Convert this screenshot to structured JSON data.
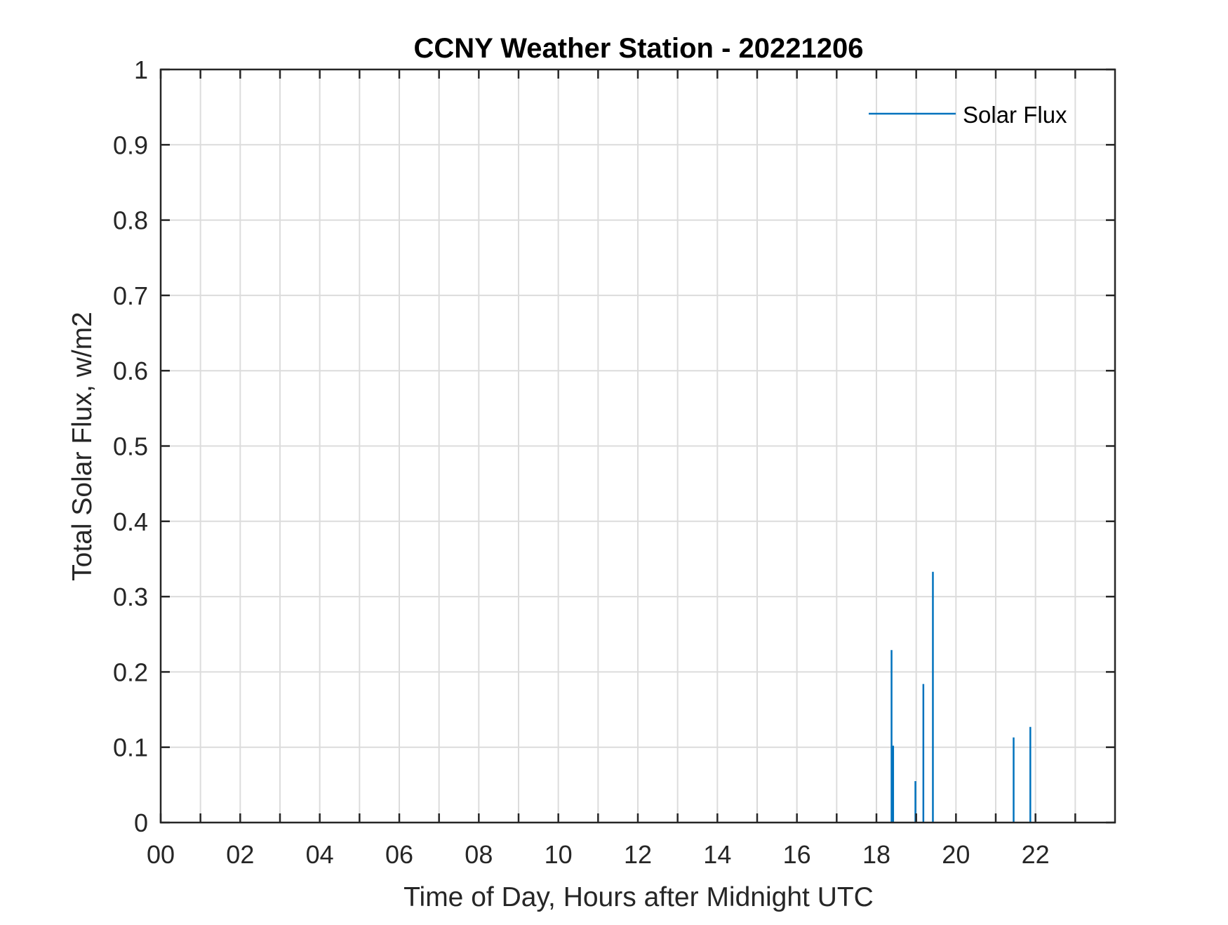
{
  "chart_data": {
    "type": "line",
    "title": "CCNY Weather Station - 20221206",
    "xlabel": "Time of Day, Hours after Midnight UTC",
    "ylabel": "Total Solar Flux, w/m2",
    "xlim": [
      0,
      24
    ],
    "ylim": [
      0,
      1
    ],
    "x_ticks": [
      0,
      2,
      4,
      6,
      8,
      10,
      12,
      14,
      16,
      18,
      20,
      22
    ],
    "x_tick_labels": [
      "00",
      "02",
      "04",
      "06",
      "08",
      "10",
      "12",
      "14",
      "16",
      "18",
      "20",
      "22"
    ],
    "x_minor_ticks": [
      1,
      3,
      5,
      7,
      9,
      11,
      13,
      15,
      17,
      19,
      21,
      23
    ],
    "y_ticks": [
      0,
      0.1,
      0.2,
      0.3,
      0.4,
      0.5,
      0.6,
      0.7,
      0.8,
      0.9,
      1
    ],
    "y_tick_labels": [
      "0",
      "0.1",
      "0.2",
      "0.3",
      "0.4",
      "0.5",
      "0.6",
      "0.7",
      "0.8",
      "0.9",
      "1"
    ],
    "grid": true,
    "legend": {
      "position": "top-right",
      "entries": [
        "Solar Flux"
      ]
    },
    "series": [
      {
        "name": "Solar Flux",
        "color": "#0072BD",
        "points": [
          {
            "x": 18.38,
            "y": 0.229
          },
          {
            "x": 18.42,
            "y": 0.102
          },
          {
            "x": 18.98,
            "y": 0.055
          },
          {
            "x": 19.18,
            "y": 0.184
          },
          {
            "x": 19.42,
            "y": 0.333
          },
          {
            "x": 21.45,
            "y": 0.113
          },
          {
            "x": 21.87,
            "y": 0.127
          }
        ]
      }
    ]
  }
}
